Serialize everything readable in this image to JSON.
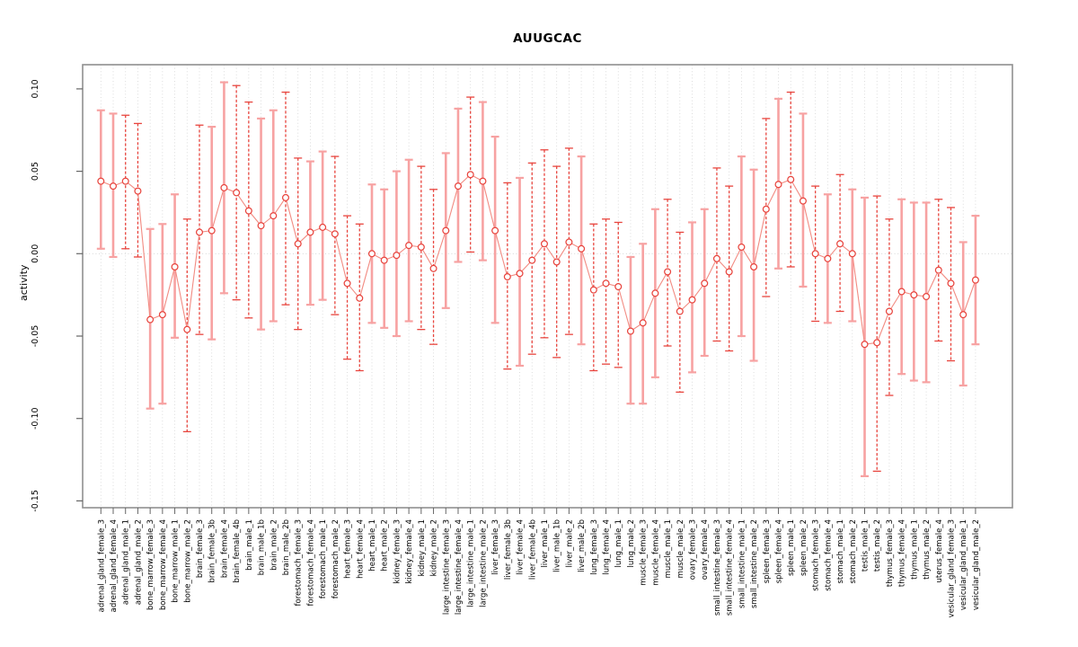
{
  "chart_data": {
    "type": "errorbar-scatter",
    "title": "AUUGCAC",
    "ylabel": "activity",
    "xlabel": "",
    "ylim": [
      -0.155,
      0.115
    ],
    "yticks": [
      0.1,
      0.05,
      0.0,
      -0.05,
      -0.1,
      -0.15
    ],
    "ytick_labels": [
      "0.10",
      "0.05",
      "0.00",
      "-0.05",
      "-0.10",
      "-0.15"
    ],
    "zero_reference_line": 0.0,
    "grid": "dotted-vertical-per-category",
    "legend": "none",
    "colors": {
      "point": "#e8453e",
      "dashed_bar": "#e8453e",
      "solid_bar": "#f7a2a2",
      "connector": "#f28b82",
      "gridline": "#d4d4d4",
      "zero_line": "#cfcfcf",
      "box": "#8f8f8f",
      "tick": "#666666",
      "text": "#000000"
    },
    "categories": [
      "adrenal_gland_female_3",
      "adrenal_gland_female_4",
      "adrenal_gland_male_1",
      "adrenal_gland_male_2",
      "bone_marrow_female_3",
      "bone_marrow_female_4",
      "bone_marrow_male_1",
      "bone_marrow_male_2",
      "brain_female_3",
      "brain_female_3b",
      "brain_female_4",
      "brain_female_4b",
      "brain_male_1",
      "brain_male_1b",
      "brain_male_2",
      "brain_male_2b",
      "forestomach_female_3",
      "forestomach_female_4",
      "forestomach_male_1",
      "forestomach_male_2",
      "heart_female_3",
      "heart_female_4",
      "heart_male_1",
      "heart_male_2",
      "kidney_female_3",
      "kidney_female_4",
      "kidney_male_1",
      "kidney_male_2",
      "large_intestine_female_3",
      "large_intestine_female_4",
      "large_intestine_male_1",
      "large_intestine_male_2",
      "liver_female_3",
      "liver_female_3b",
      "liver_female_4",
      "liver_female_4b",
      "liver_male_1",
      "liver_male_1b",
      "liver_male_2",
      "liver_male_2b",
      "lung_female_3",
      "lung_female_4",
      "lung_male_1",
      "lung_male_2",
      "muscle_female_3",
      "muscle_female_4",
      "muscle_male_1",
      "muscle_male_2",
      "ovary_female_3",
      "ovary_female_4",
      "small_intestine_female_3",
      "small_intestine_female_4",
      "small_intestine_male_1",
      "small_intestine_male_2",
      "spleen_female_3",
      "spleen_female_4",
      "spleen_male_1",
      "spleen_male_2",
      "stomach_female_3",
      "stomach_female_4",
      "stomach_male_1",
      "stomach_male_2",
      "testis_male_1",
      "testis_male_2",
      "thymus_female_3",
      "thymus_female_4",
      "thymus_male_1",
      "thymus_male_2",
      "uterus_female_4",
      "vesicular_gland_female_3",
      "vesicular_gland_male_1",
      "vesicular_gland_male_2"
    ],
    "series": [
      {
        "name": "activity",
        "values": [
          0.044,
          0.041,
          0.044,
          0.038,
          -0.04,
          -0.037,
          -0.008,
          -0.046,
          0.013,
          0.014,
          0.04,
          0.037,
          0.026,
          0.017,
          0.023,
          0.034,
          0.006,
          0.013,
          0.016,
          0.012,
          -0.018,
          -0.027,
          0.0,
          -0.004,
          -0.001,
          0.005,
          0.004,
          -0.009,
          0.014,
          0.041,
          0.048,
          0.044,
          0.014,
          -0.014,
          -0.012,
          -0.004,
          0.006,
          -0.005,
          0.007,
          0.003,
          -0.022,
          -0.018,
          -0.02,
          -0.047,
          -0.042,
          -0.024,
          -0.011,
          -0.035,
          -0.028,
          -0.018,
          -0.003,
          -0.011,
          0.004,
          -0.008,
          0.027,
          0.042,
          0.045,
          0.032,
          0.0,
          -0.003,
          0.006,
          0.0,
          -0.055,
          -0.054,
          -0.035,
          -0.023,
          -0.025,
          -0.026,
          -0.01,
          -0.018,
          -0.037,
          -0.016
        ],
        "ci_low": [
          0.003,
          -0.002,
          0.003,
          -0.002,
          -0.094,
          -0.091,
          -0.051,
          -0.108,
          -0.049,
          -0.052,
          -0.024,
          -0.028,
          -0.039,
          -0.046,
          -0.041,
          -0.031,
          -0.046,
          -0.031,
          -0.028,
          -0.037,
          -0.064,
          -0.071,
          -0.042,
          -0.045,
          -0.05,
          -0.041,
          -0.046,
          -0.055,
          -0.033,
          -0.005,
          0.001,
          -0.004,
          -0.042,
          -0.07,
          -0.068,
          -0.061,
          -0.051,
          -0.063,
          -0.049,
          -0.055,
          -0.071,
          -0.067,
          -0.069,
          -0.091,
          -0.091,
          -0.075,
          -0.056,
          -0.084,
          -0.072,
          -0.062,
          -0.053,
          -0.059,
          -0.05,
          -0.065,
          -0.026,
          -0.009,
          -0.008,
          -0.02,
          -0.041,
          -0.042,
          -0.035,
          -0.041,
          -0.135,
          -0.132,
          -0.086,
          -0.073,
          -0.077,
          -0.078,
          -0.053,
          -0.065,
          -0.08,
          -0.055
        ],
        "ci_high": [
          0.087,
          0.085,
          0.084,
          0.079,
          0.015,
          0.018,
          0.036,
          0.021,
          0.078,
          0.077,
          0.104,
          0.102,
          0.092,
          0.082,
          0.087,
          0.098,
          0.058,
          0.056,
          0.062,
          0.059,
          0.023,
          0.018,
          0.042,
          0.039,
          0.05,
          0.057,
          0.053,
          0.039,
          0.061,
          0.088,
          0.095,
          0.092,
          0.071,
          0.043,
          0.046,
          0.055,
          0.063,
          0.053,
          0.064,
          0.059,
          0.018,
          0.021,
          0.019,
          -0.002,
          0.006,
          0.027,
          0.033,
          0.013,
          0.019,
          0.027,
          0.052,
          0.041,
          0.059,
          0.051,
          0.082,
          0.094,
          0.098,
          0.085,
          0.041,
          0.036,
          0.048,
          0.039,
          0.034,
          0.035,
          0.021,
          0.033,
          0.031,
          0.031,
          0.033,
          0.028,
          0.007,
          0.023
        ],
        "bar_style": [
          "s",
          "s",
          "d",
          "d",
          "s",
          "s",
          "s",
          "d",
          "d",
          "s",
          "s",
          "d",
          "d",
          "s",
          "s",
          "d",
          "d",
          "s",
          "s",
          "d",
          "d",
          "d",
          "s",
          "s",
          "s",
          "s",
          "d",
          "d",
          "s",
          "s",
          "d",
          "s",
          "s",
          "d",
          "s",
          "d",
          "d",
          "d",
          "d",
          "s",
          "d",
          "d",
          "d",
          "s",
          "s",
          "s",
          "d",
          "d",
          "s",
          "s",
          "d",
          "d",
          "s",
          "s",
          "d",
          "s",
          "d",
          "s",
          "d",
          "s",
          "d",
          "s",
          "s",
          "d",
          "d",
          "s",
          "s",
          "s",
          "d",
          "d",
          "s",
          "s"
        ]
      }
    ]
  }
}
